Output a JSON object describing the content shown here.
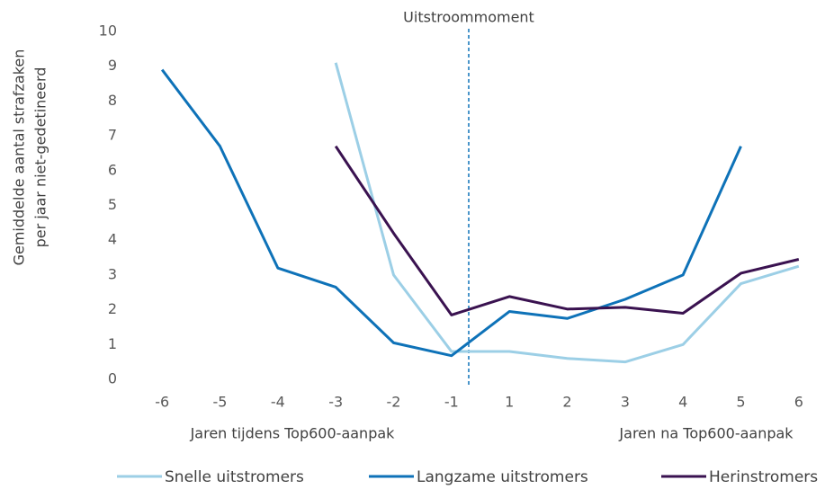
{
  "chart_data": {
    "type": "line",
    "ylabel": [
      "Gemiddelde aantal strafzaken",
      "per jaar niet-gedetineerd"
    ],
    "categories": [
      "-6",
      "-5",
      "-4",
      "-3",
      "-2",
      "-1",
      "1",
      "2",
      "3",
      "4",
      "5",
      "6"
    ],
    "annotations": [
      "Uitstroommoment",
      "Jaren tijdens Top600-aanpak",
      "Jaren na Top600-aanpak"
    ],
    "series": [
      {
        "name": "Snelle uitstromers",
        "color": "#9ccfe6",
        "values": [
          null,
          null,
          null,
          9.1,
          3.0,
          0.8,
          0.8,
          0.6,
          0.5,
          1.0,
          2.75,
          3.25
        ]
      },
      {
        "name": "Langzame uitstromers",
        "color": "#0e72b8",
        "values": [
          8.9,
          6.7,
          3.2,
          2.65,
          1.05,
          0.68,
          1.95,
          1.75,
          2.3,
          3.0,
          6.7,
          null
        ]
      },
      {
        "name": "Herinstromers",
        "color": "#3a1250",
        "values": [
          null,
          null,
          null,
          6.7,
          4.2,
          1.85,
          2.38,
          2.02,
          2.07,
          1.9,
          3.05,
          3.45
        ]
      }
    ],
    "ylim": [
      0,
      10
    ],
    "yticks": [
      0,
      1,
      2,
      3,
      4,
      5,
      6,
      7,
      8,
      9,
      10
    ],
    "grid": false,
    "legend": "bottom"
  }
}
